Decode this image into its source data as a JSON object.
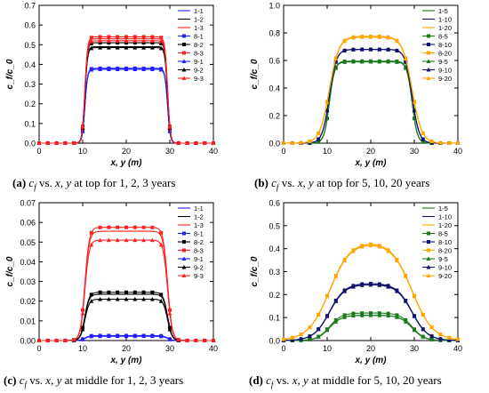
{
  "charts": [
    {
      "id": "a",
      "type": "line",
      "ylabel": "c_f/c_0",
      "xlabel": "x, y (m)",
      "xlim": [
        0,
        40
      ],
      "ylim": [
        0,
        0.7
      ],
      "xticks": [
        0,
        10,
        20,
        30,
        40
      ],
      "yticks": [
        0,
        0.1,
        0.2,
        0.3,
        0.4,
        0.5,
        0.6,
        0.7
      ],
      "ytick_labels": [
        "0.0",
        "0.1",
        "0.2",
        "0.3",
        "0.4",
        "0.5",
        "0.6",
        "0.7"
      ],
      "legend": [
        "1-1",
        "1-2",
        "1-3",
        "8-1",
        "8-2",
        "8-3",
        "9-1",
        "9-2",
        "9-3"
      ],
      "caption_tag": "(a)",
      "caption_text": " c f vs. x, y at top for 1, 2, 3 years",
      "series": [
        {
          "name": "1-1",
          "color": "#1f1fff",
          "marker": "none",
          "plateau": 0.375,
          "edge": 0.3
        },
        {
          "name": "1-2",
          "color": "#000000",
          "marker": "none",
          "plateau": 0.49,
          "edge": 0.3
        },
        {
          "name": "1-3",
          "color": "#ff2020",
          "marker": "none",
          "plateau": 0.53,
          "edge": 0.3
        },
        {
          "name": "8-1",
          "color": "#1f1fff",
          "marker": "square",
          "plateau": 0.38,
          "edge": 0.3
        },
        {
          "name": "8-2",
          "color": "#000000",
          "marker": "square",
          "plateau": 0.51,
          "edge": 0.3
        },
        {
          "name": "8-3",
          "color": "#ff2020",
          "marker": "square",
          "plateau": 0.54,
          "edge": 0.3
        },
        {
          "name": "9-1",
          "color": "#1f1fff",
          "marker": "triangle",
          "plateau": 0.375,
          "edge": 0.3
        },
        {
          "name": "9-2",
          "color": "#000000",
          "marker": "triangle",
          "plateau": 0.485,
          "edge": 0.3
        },
        {
          "name": "9-3",
          "color": "#ff2020",
          "marker": "triangle",
          "plateau": 0.52,
          "edge": 0.3
        }
      ]
    },
    {
      "id": "b",
      "type": "line",
      "ylabel": "c_f/c_0",
      "xlabel": "x, y (m)",
      "xlim": [
        0,
        40
      ],
      "ylim": [
        0,
        1.0
      ],
      "xticks": [
        0,
        10,
        20,
        30,
        40
      ],
      "yticks": [
        0,
        0.2,
        0.4,
        0.6,
        0.8,
        1.0
      ],
      "ytick_labels": [
        "0.0",
        "0.2",
        "0.4",
        "0.6",
        "0.8",
        "1.0"
      ],
      "legend": [
        "1-5",
        "1-10",
        "1-20",
        "8-5",
        "8-10",
        "8-20",
        "9-5",
        "9-10",
        "9-20"
      ],
      "caption_tag": "(b)",
      "caption_text": " c f vs. x, y at top for 5, 10, 20 years",
      "series": [
        {
          "name": "1-5",
          "color": "#1a7a1a",
          "marker": "none",
          "plateau": 0.59,
          "edge": 0.6
        },
        {
          "name": "1-10",
          "color": "#10106e",
          "marker": "none",
          "plateau": 0.68,
          "edge": 0.8
        },
        {
          "name": "1-20",
          "color": "#ffa500",
          "marker": "none",
          "plateau": 0.77,
          "edge": 1.1
        },
        {
          "name": "8-5",
          "color": "#1a7a1a",
          "marker": "square",
          "plateau": 0.595,
          "edge": 0.6
        },
        {
          "name": "8-10",
          "color": "#10106e",
          "marker": "square",
          "plateau": 0.68,
          "edge": 0.8
        },
        {
          "name": "8-20",
          "color": "#ffa500",
          "marker": "square",
          "plateau": 0.775,
          "edge": 1.1
        },
        {
          "name": "9-5",
          "color": "#1a7a1a",
          "marker": "triangle",
          "plateau": 0.59,
          "edge": 0.6
        },
        {
          "name": "9-10",
          "color": "#10106e",
          "marker": "triangle",
          "plateau": 0.68,
          "edge": 0.8
        },
        {
          "name": "9-20",
          "color": "#ffa500",
          "marker": "triangle",
          "plateau": 0.77,
          "edge": 1.1
        }
      ]
    },
    {
      "id": "c",
      "type": "line",
      "ylabel": "c_f/c_0",
      "xlabel": "x, y (m)",
      "xlim": [
        0,
        40
      ],
      "ylim": [
        0,
        0.07
      ],
      "xticks": [
        0,
        10,
        20,
        30,
        40
      ],
      "yticks": [
        0,
        0.01,
        0.02,
        0.03,
        0.04,
        0.05,
        0.06,
        0.07
      ],
      "ytick_labels": [
        "0.00",
        "0.01",
        "0.02",
        "0.03",
        "0.04",
        "0.05",
        "0.06",
        "0.07"
      ],
      "legend": [
        "1-1",
        "1-2",
        "1-3",
        "8-1",
        "8-2",
        "8-3",
        "9-1",
        "9-2",
        "9-3"
      ],
      "caption_tag": "(c)",
      "caption_text": " c f vs. x, y at middle for 1, 2, 3 years",
      "series": [
        {
          "name": "1-1",
          "color": "#1f1fff",
          "marker": "none",
          "plateau": 0.0022,
          "edge": 0.5
        },
        {
          "name": "1-2",
          "color": "#000000",
          "marker": "none",
          "plateau": 0.0235,
          "edge": 0.5
        },
        {
          "name": "1-3",
          "color": "#ff2020",
          "marker": "none",
          "plateau": 0.0555,
          "edge": 0.5
        },
        {
          "name": "8-1",
          "color": "#1f1fff",
          "marker": "square",
          "plateau": 0.0025,
          "edge": 0.5
        },
        {
          "name": "8-2",
          "color": "#000000",
          "marker": "square",
          "plateau": 0.0245,
          "edge": 0.5
        },
        {
          "name": "8-3",
          "color": "#ff2020",
          "marker": "square",
          "plateau": 0.0575,
          "edge": 0.5
        },
        {
          "name": "9-1",
          "color": "#1f1fff",
          "marker": "triangle",
          "plateau": 0.0022,
          "edge": 0.5
        },
        {
          "name": "9-2",
          "color": "#000000",
          "marker": "triangle",
          "plateau": 0.021,
          "edge": 0.5
        },
        {
          "name": "9-3",
          "color": "#ff2020",
          "marker": "triangle",
          "plateau": 0.051,
          "edge": 0.5
        }
      ]
    },
    {
      "id": "d",
      "type": "line",
      "ylabel": "c_f/c_0",
      "xlabel": "x, y (m)",
      "xlim": [
        0,
        40
      ],
      "ylim": [
        0,
        0.6
      ],
      "xticks": [
        0,
        10,
        20,
        30,
        40
      ],
      "yticks": [
        0,
        0.1,
        0.2,
        0.3,
        0.4,
        0.5,
        0.6
      ],
      "ytick_labels": [
        "0.0",
        "0.1",
        "0.2",
        "0.3",
        "0.4",
        "0.5",
        "0.6"
      ],
      "legend": [
        "1-5",
        "1-10",
        "1-20",
        "8-5",
        "8-10",
        "8-20",
        "9-5",
        "9-10",
        "9-20"
      ],
      "caption_tag": "(d)",
      "caption_text": " c f vs. x, y at middle for 5, 10, 20 years",
      "series": [
        {
          "name": "1-5",
          "color": "#1a7a1a",
          "marker": "none",
          "plateau": 0.11,
          "edge": 1.4
        },
        {
          "name": "1-10",
          "color": "#10106e",
          "marker": "none",
          "plateau": 0.245,
          "edge": 1.8
        },
        {
          "name": "1-20",
          "color": "#ffa500",
          "marker": "none",
          "plateau": 0.43,
          "edge": 2.4
        },
        {
          "name": "8-5",
          "color": "#1a7a1a",
          "marker": "square",
          "plateau": 0.12,
          "edge": 1.4
        },
        {
          "name": "8-10",
          "color": "#10106e",
          "marker": "square",
          "plateau": 0.25,
          "edge": 1.8
        },
        {
          "name": "8-20",
          "color": "#ffa500",
          "marker": "square",
          "plateau": 0.435,
          "edge": 2.4
        },
        {
          "name": "9-5",
          "color": "#1a7a1a",
          "marker": "triangle",
          "plateau": 0.11,
          "edge": 1.4
        },
        {
          "name": "9-10",
          "color": "#10106e",
          "marker": "triangle",
          "plateau": 0.245,
          "edge": 1.8
        },
        {
          "name": "9-20",
          "color": "#ffa500",
          "marker": "triangle",
          "plateau": 0.43,
          "edge": 2.4
        }
      ]
    }
  ],
  "chart_data": [
    {
      "type": "line",
      "ylabel": "c_f/c_0",
      "xlabel": "x, y (m)",
      "xlim": [
        0,
        40
      ],
      "ylim": [
        0,
        0.7
      ],
      "note_series_plateau_levels": [
        0.375,
        0.49,
        0.53,
        0.38,
        0.51,
        0.54,
        0.375,
        0.485,
        0.52
      ],
      "series_names": [
        "1-1",
        "1-2",
        "1-3",
        "8-1",
        "8-2",
        "8-3",
        "9-1",
        "9-2",
        "9-3"
      ]
    },
    {
      "type": "line",
      "ylabel": "c_f/c_0",
      "xlabel": "x, y (m)",
      "xlim": [
        0,
        40
      ],
      "ylim": [
        0,
        1.0
      ],
      "series_names": [
        "1-5",
        "1-10",
        "1-20",
        "8-5",
        "8-10",
        "8-20",
        "9-5",
        "9-10",
        "9-20"
      ]
    },
    {
      "type": "line",
      "ylabel": "c_f/c_0",
      "xlabel": "x, y (m)",
      "xlim": [
        0,
        40
      ],
      "ylim": [
        0,
        0.07
      ],
      "series_names": [
        "1-1",
        "1-2",
        "1-3",
        "8-1",
        "8-2",
        "8-3",
        "9-1",
        "9-2",
        "9-3"
      ]
    },
    {
      "type": "line",
      "ylabel": "c_f/c_0",
      "xlabel": "x, y (m)",
      "xlim": [
        0,
        40
      ],
      "ylim": [
        0,
        0.6
      ],
      "series_names": [
        "1-5",
        "1-10",
        "1-20",
        "8-5",
        "8-10",
        "8-20",
        "9-5",
        "9-10",
        "9-20"
      ]
    }
  ]
}
